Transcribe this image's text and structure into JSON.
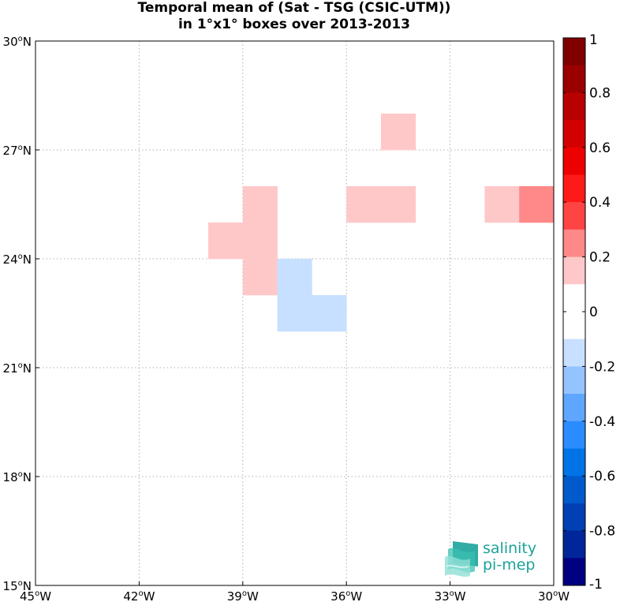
{
  "chart_data": {
    "type": "heatmap",
    "title_line1": "Temporal mean of (Sat - TSG (CSIC-UTM))",
    "title_line2": "in 1°x1° boxes over 2013-2013",
    "xlim": [
      -45,
      -30
    ],
    "ylim": [
      15,
      30
    ],
    "x_ticks": [
      {
        "value": -45,
        "deg": "45",
        "hem": "W"
      },
      {
        "value": -42,
        "deg": "42",
        "hem": "W"
      },
      {
        "value": -39,
        "deg": "39",
        "hem": "W"
      },
      {
        "value": -36,
        "deg": "36",
        "hem": "W"
      },
      {
        "value": -33,
        "deg": "33",
        "hem": "W"
      },
      {
        "value": -30,
        "deg": "30",
        "hem": "W"
      }
    ],
    "y_ticks": [
      {
        "value": 15,
        "deg": "15",
        "hem": "N"
      },
      {
        "value": 18,
        "deg": "18",
        "hem": "N"
      },
      {
        "value": 21,
        "deg": "21",
        "hem": "N"
      },
      {
        "value": 24,
        "deg": "24",
        "hem": "N"
      },
      {
        "value": 27,
        "deg": "27",
        "hem": "N"
      },
      {
        "value": 30,
        "deg": "30",
        "hem": "N"
      }
    ],
    "grid": true,
    "cells": [
      {
        "lon": -35,
        "lat": 27,
        "value": 0.15
      },
      {
        "lon": -39,
        "lat": 25,
        "value": 0.15
      },
      {
        "lon": -36,
        "lat": 25,
        "value": 0.15
      },
      {
        "lon": -35,
        "lat": 25,
        "value": 0.15
      },
      {
        "lon": -32,
        "lat": 25,
        "value": 0.15
      },
      {
        "lon": -31,
        "lat": 25,
        "value": 0.25
      },
      {
        "lon": -40,
        "lat": 24,
        "value": 0.15
      },
      {
        "lon": -39,
        "lat": 24,
        "value": 0.15
      },
      {
        "lon": -39,
        "lat": 23,
        "value": 0.15
      },
      {
        "lon": -38,
        "lat": 23,
        "value": -0.15
      },
      {
        "lon": -38,
        "lat": 22,
        "value": -0.15
      },
      {
        "lon": -37,
        "lat": 22,
        "value": -0.15
      }
    ],
    "colorbar": {
      "range": [
        -1,
        1
      ],
      "tick_values": [
        1,
        0.8,
        0.6,
        0.4,
        0.2,
        0,
        -0.2,
        -0.4,
        -0.6,
        -0.8,
        -1
      ],
      "tick_labels": [
        "1",
        "0.8",
        "0.6",
        "0.4",
        "0.2",
        "0",
        "-0.2",
        "-0.4",
        "-0.6",
        "-0.8",
        "-1"
      ],
      "colors_top_to_bottom": [
        "#800000",
        "#9b0000",
        "#b70000",
        "#d20000",
        "#ed0000",
        "#ff1a1a",
        "#ff4444",
        "#ff8888",
        "#ffc8c8",
        "#ffffff",
        "#ffffff",
        "#c8e0ff",
        "#94c4ff",
        "#5ea6ff",
        "#2b8cff",
        "#0073e6",
        "#005acc",
        "#0040b3",
        "#002699",
        "#000080"
      ]
    }
  },
  "logo": {
    "line1": "salinity",
    "line2": "pi-mep"
  },
  "colors": {
    "brand": "#1aa39a"
  }
}
